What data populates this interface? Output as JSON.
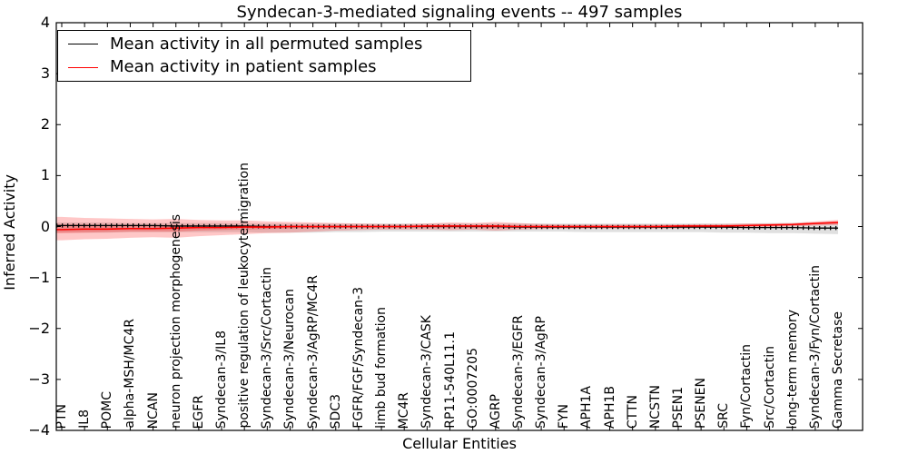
{
  "chart_data": {
    "type": "line",
    "title": "Syndecan-3-mediated signaling events -- 497 samples",
    "xlabel": "Cellular Entities",
    "ylabel": "Inferred Activity",
    "ylim": [
      -4,
      4
    ],
    "y_ticks": [
      4,
      3,
      2,
      1,
      0,
      -1,
      -2,
      -3,
      -4
    ],
    "grid": false,
    "legend_position": "upper left",
    "categories": [
      "PTN",
      "IL8",
      "POMC",
      "alpha-MSH/MC4R",
      "NCAN",
      "neuron projection morphogenesis",
      "EGFR",
      "Syndecan-3/IL8",
      "positive regulation of leukocyte migration",
      "Syndecan-3/Src/Cortactin",
      "Syndecan-3/Neurocan",
      "Syndecan-3/AgRP/MC4R",
      "SDC3",
      "FGFR/FGF/Syndecan-3",
      "limb bud formation",
      "MC4R",
      "Syndecan-3/CASK",
      "RP11-540L11.1",
      "GO:0007205",
      "AGRP",
      "Syndecan-3/EGFR",
      "Syndecan-3/AgRP",
      "FYN",
      "APH1A",
      "APH1B",
      "CTTN",
      "NCSTN",
      "PSEN1",
      "PSENEN",
      "SRC",
      "Fyn/Cortactin",
      "Src/Cortactin",
      "long-term memory",
      "Syndecan-3/Fyn/Cortactin",
      "Gamma Secretase"
    ],
    "series": [
      {
        "name": "Mean activity in all permuted samples",
        "color": "#000000",
        "values": [
          0.02,
          0.02,
          0.02,
          0.02,
          0.02,
          0.01,
          0.01,
          0.01,
          0.01,
          0.0,
          0.0,
          0.0,
          0.0,
          0.0,
          0.0,
          0.0,
          0.0,
          0.0,
          0.0,
          0.0,
          -0.01,
          -0.01,
          -0.01,
          -0.01,
          -0.01,
          -0.01,
          -0.01,
          -0.01,
          -0.01,
          -0.01,
          -0.02,
          -0.02,
          -0.02,
          -0.03,
          -0.03
        ]
      },
      {
        "name": "Mean activity in patient samples",
        "color": "#ff0000",
        "values": [
          -0.06,
          -0.05,
          -0.05,
          -0.04,
          -0.04,
          -0.03,
          -0.02,
          -0.02,
          -0.01,
          -0.01,
          0.0,
          0.0,
          0.0,
          0.0,
          0.0,
          0.0,
          0.01,
          0.01,
          0.01,
          0.01,
          0.0,
          0.0,
          0.0,
          0.0,
          0.0,
          0.0,
          0.0,
          0.01,
          0.01,
          0.01,
          0.02,
          0.03,
          0.04,
          0.06,
          0.08
        ]
      }
    ],
    "bands": [
      {
        "name": "permuted-std-band",
        "color": "#000000",
        "opacity": 0.12,
        "upper": [
          0.08,
          0.08,
          0.08,
          0.07,
          0.07,
          0.07,
          0.07,
          0.07,
          0.06,
          0.06,
          0.06,
          0.06,
          0.06,
          0.06,
          0.06,
          0.06,
          0.06,
          0.06,
          0.06,
          0.06,
          0.06,
          0.06,
          0.06,
          0.06,
          0.06,
          0.06,
          0.06,
          0.06,
          0.06,
          0.06,
          0.06,
          0.07,
          0.07,
          0.08,
          0.1
        ],
        "lower": [
          -0.12,
          -0.12,
          -0.12,
          -0.11,
          -0.11,
          -0.11,
          -0.11,
          -0.11,
          -0.11,
          -0.12,
          -0.12,
          -0.12,
          -0.11,
          -0.11,
          -0.1,
          -0.1,
          -0.1,
          -0.1,
          -0.1,
          -0.1,
          -0.1,
          -0.1,
          -0.1,
          -0.11,
          -0.11,
          -0.11,
          -0.11,
          -0.11,
          -0.11,
          -0.12,
          -0.12,
          -0.13,
          -0.13,
          -0.14,
          -0.15
        ]
      },
      {
        "name": "patient-std-band-outer",
        "color": "#ff0000",
        "opacity": 0.22,
        "upper": [
          0.19,
          0.17,
          0.16,
          0.15,
          0.14,
          0.15,
          0.13,
          0.12,
          0.12,
          0.1,
          0.09,
          0.08,
          0.07,
          0.06,
          0.05,
          0.05,
          0.06,
          0.08,
          0.07,
          0.09,
          0.07,
          0.05,
          0.04,
          0.04,
          0.04,
          0.04,
          0.04,
          0.04,
          0.05,
          0.05,
          0.06,
          0.06,
          0.07,
          0.1,
          0.13
        ],
        "lower": [
          -0.27,
          -0.25,
          -0.24,
          -0.22,
          -0.21,
          -0.22,
          -0.19,
          -0.17,
          -0.15,
          -0.13,
          -0.12,
          -0.1,
          -0.08,
          -0.07,
          -0.06,
          -0.06,
          -0.06,
          -0.07,
          -0.06,
          -0.08,
          -0.06,
          -0.05,
          -0.04,
          -0.04,
          -0.04,
          -0.04,
          -0.04,
          -0.04,
          -0.03,
          -0.03,
          -0.02,
          -0.01,
          0.0,
          0.02,
          0.03
        ]
      },
      {
        "name": "patient-std-band-inner",
        "color": "#ff0000",
        "opacity": 0.22,
        "upper": [
          0.04,
          0.04,
          0.03,
          0.03,
          0.03,
          0.03,
          0.02,
          0.02,
          0.02,
          0.02,
          0.02,
          0.02,
          0.02,
          0.02,
          0.02,
          0.02,
          0.02,
          0.03,
          0.02,
          0.03,
          0.02,
          0.02,
          0.02,
          0.02,
          0.02,
          0.02,
          0.02,
          0.02,
          0.02,
          0.03,
          0.03,
          0.04,
          0.05,
          0.08,
          0.1
        ],
        "lower": [
          -0.13,
          -0.12,
          -0.11,
          -0.1,
          -0.1,
          -0.1,
          -0.08,
          -0.07,
          -0.06,
          -0.05,
          -0.04,
          -0.03,
          -0.03,
          -0.02,
          -0.02,
          -0.02,
          -0.02,
          -0.02,
          -0.02,
          -0.03,
          -0.02,
          -0.02,
          -0.02,
          -0.02,
          -0.02,
          -0.02,
          -0.02,
          -0.02,
          -0.01,
          -0.01,
          0.0,
          0.01,
          0.02,
          0.04,
          0.05
        ]
      }
    ]
  }
}
